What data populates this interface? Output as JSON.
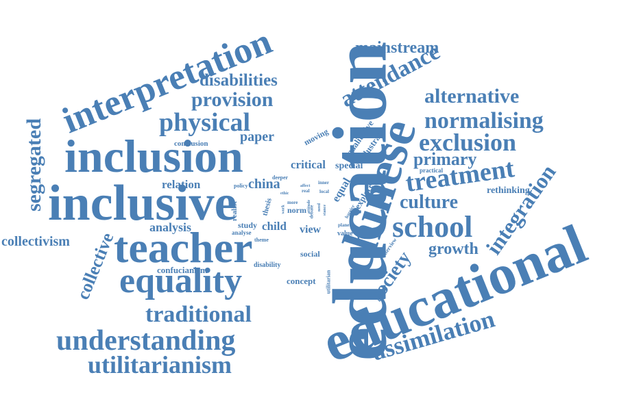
{
  "colors": {
    "text": "#4a7fb5",
    "background": "#ffffff"
  },
  "words": {
    "education": "education",
    "educational": "educational",
    "chinese": "chinese",
    "interpretation": "interpretation",
    "inclusion": "inclusion",
    "inclusive": "inclusive",
    "teacher": "teacher",
    "equality": "equality",
    "understanding": "understanding",
    "utilitarianism": "utilitarianism",
    "traditional": "traditional",
    "segregated": "segregated",
    "collective": "collective",
    "collectivism": "collectivism",
    "physical": "physical",
    "provision": "provision",
    "disabilities": "disabilities",
    "mainstream": "mainstream",
    "attendance": "attendance",
    "alternative": "alternative",
    "normalising": "normalising",
    "exclusion": "exclusion",
    "primary": "primary",
    "treatment": "treatment",
    "culture": "culture",
    "school": "school",
    "integration": "integration",
    "assimilation": "assimilation",
    "growth": "growth",
    "society": "society",
    "rethinking": "rethinking",
    "practical": "practical",
    "paper": "paper",
    "conclusion": "conclusion",
    "relation": "relation",
    "china": "china",
    "analysis": "analysis",
    "confucianism": "confucianism",
    "critical": "critical",
    "special": "special",
    "moving": "moving",
    "qualitative": "qualitative",
    "illustrate": "illustrate",
    "equal": "equal",
    "explore": "explore",
    "view": "view",
    "value": "value",
    "child": "child",
    "study": "study",
    "realist": "realist",
    "thesis": "thesis",
    "norm": "norm",
    "social": "social",
    "concept": "concept",
    "disability": "disability",
    "analyse": "analyse",
    "policy": "policy",
    "deeper": "deeper",
    "theme": "theme",
    "interview": "interview",
    "utilitarian": "utilitarian",
    "more": "more",
    "inner": "inner",
    "local": "local",
    "real": "real",
    "affect": "affect",
    "plane": "plane",
    "debate": "debate",
    "barrier": "barrier",
    "attitude": "attitude",
    "need": "need",
    "work": "work",
    "stance": "stance",
    "ethic": "ethic"
  }
}
